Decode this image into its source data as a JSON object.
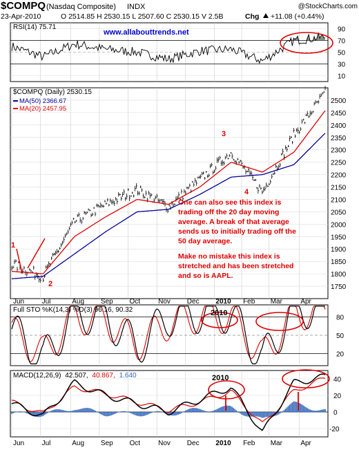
{
  "header": {
    "symbol": "$COMPQ",
    "name": "(Nasdaq Composite)",
    "exchange": "INDX",
    "source": "@StockCharts.com",
    "date": "23-Apr-2010",
    "quote": "O 2514.85 H 2530.15 L 2507.60 C 2530.15 V 2.5B",
    "chg_label": "Chg",
    "chg": "+11.08 (+0.44%)",
    "chg_icon": "up-triangle-icon"
  },
  "rsi_panel": {
    "label": "RSI(14) 75.71",
    "website": "www.allabouttrends.net",
    "ticks": [
      "90",
      "70",
      "50",
      "30",
      "10"
    ],
    "level_values": [
      90,
      70,
      50,
      30,
      10
    ]
  },
  "price_panel": {
    "label": "$COMPQ (Daily) 2530.15",
    "ma50_label": "MA(50) 2366.67",
    "ma20_label": "MA(20) 2457.95",
    "ticks": [
      "2500",
      "2450",
      "2400",
      "2350",
      "2300",
      "2250",
      "2200",
      "2150",
      "2100",
      "2050",
      "2000",
      "1950",
      "1900",
      "1850",
      "1800",
      "1750"
    ],
    "wave_labels": [
      "1",
      "2",
      "3",
      "4"
    ],
    "annotation_1": [
      "One can also see this index is",
      "trading off the 20 day moving",
      "average. A break of that average",
      "sends us to initially trading off the",
      "50 day average."
    ],
    "annotation_2": [
      "Make no mistake this index is",
      "stretched and has been stretched",
      "and so is AAPL."
    ]
  },
  "sto_panel": {
    "label": "Full STO %K(14,3) %D(3) 96.16, 90.32",
    "ticks": [
      "80",
      "50",
      "20"
    ],
    "year_label": "2010"
  },
  "macd_panel": {
    "label_prefix": "MACD(12,26,9)",
    "v1": "42.507,",
    "v2": "40.867,",
    "v3": "1.640",
    "ticks": [
      "40",
      "20",
      "0",
      "-20"
    ],
    "year_label": "2010"
  },
  "x_labels_price": [
    "Jun",
    "Jul",
    "Aug",
    "Sep",
    "Oct",
    "Nov",
    "Dec",
    "2010",
    "Feb",
    "Mar",
    "Apr"
  ],
  "x_labels_bottom": [
    "Jun",
    "Jul",
    "Aug",
    "Sep",
    "Oct",
    "Nov",
    "Dec",
    "2010",
    "Feb",
    "Mar",
    "Apr"
  ],
  "colors": {
    "price": "#000000",
    "ma50": "#000099",
    "ma20": "#dd0000",
    "annotation": "#dd0000",
    "website": "#0000cc",
    "macd_hist": "#3366bb",
    "rsi_fill": "#556655"
  },
  "chart_data": {
    "type": "line",
    "title": "$COMPQ (Nasdaq Composite) INDX",
    "x": [
      "Jun",
      "Jul",
      "Aug",
      "Sep",
      "Oct",
      "Nov",
      "Dec",
      "2010",
      "Feb",
      "Mar",
      "Apr"
    ],
    "ylim": [
      1700,
      2550
    ],
    "series": [
      {
        "name": "$COMPQ (Daily) 2530.15",
        "values": [
          1840,
          1790,
          2010,
          2080,
          2140,
          2070,
          2180,
          2290,
          2130,
          2360,
          2530
        ]
      },
      {
        "name": "MA(20) 2457.95",
        "values": [
          1810,
          1800,
          1950,
          2030,
          2100,
          2080,
          2150,
          2250,
          2210,
          2290,
          2458
        ]
      },
      {
        "name": "MA(50) 2366.67",
        "values": [
          1780,
          1790,
          1880,
          1970,
          2050,
          2060,
          2120,
          2190,
          2200,
          2240,
          2367
        ]
      }
    ],
    "rsi": {
      "ylim": [
        10,
        90
      ],
      "values": [
        60,
        42,
        64,
        55,
        50,
        38,
        52,
        55,
        35,
        70,
        76
      ]
    },
    "stochastic": {
      "ylim": [
        0,
        100
      ],
      "k": [
        60,
        10,
        85,
        80,
        30,
        80,
        85,
        85,
        10,
        90,
        96
      ],
      "d": [
        55,
        20,
        80,
        75,
        35,
        70,
        82,
        80,
        15,
        85,
        90
      ]
    },
    "macd": {
      "ylim": [
        -30,
        50
      ],
      "macd": [
        10,
        -5,
        35,
        20,
        10,
        0,
        15,
        30,
        -25,
        35,
        42.5
      ],
      "signal": [
        12,
        -2,
        30,
        22,
        12,
        2,
        12,
        25,
        -15,
        25,
        40.9
      ],
      "histogram": [
        -2,
        -3,
        5,
        -2,
        -2,
        -2,
        3,
        5,
        -10,
        10,
        1.6
      ]
    }
  }
}
